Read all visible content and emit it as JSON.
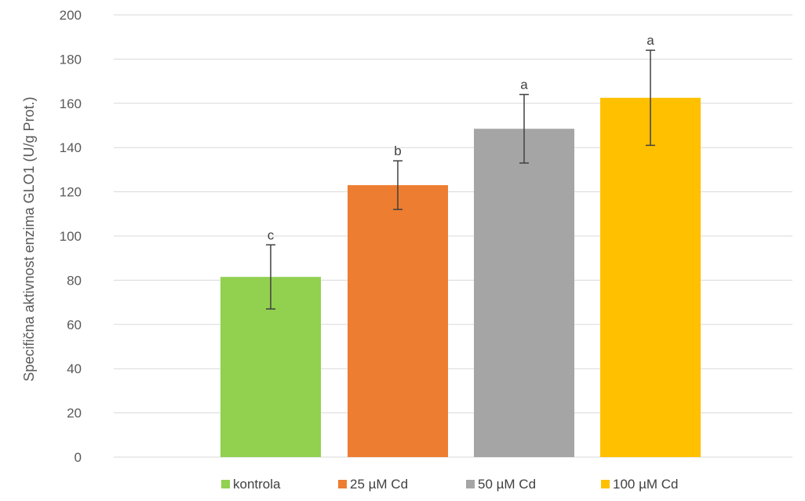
{
  "chart_data": {
    "type": "bar",
    "title": "",
    "xlabel": "",
    "ylabel": "Specifična aktivnost enzima  GLO1 (U/g Prot.)",
    "ylim": [
      0,
      200
    ],
    "yticks": [
      0,
      20,
      40,
      60,
      80,
      100,
      120,
      140,
      160,
      180,
      200
    ],
    "grid": true,
    "legend_position": "bottom",
    "series": [
      {
        "name": "kontrola",
        "value": 81.5,
        "error": 14.5,
        "label": "c",
        "color": "#92D050"
      },
      {
        "name": "25 µM Cd",
        "value": 123,
        "error": 11,
        "label": "b",
        "color": "#ED7D31"
      },
      {
        "name": "50 µM Cd",
        "value": 148.5,
        "error": 15.5,
        "label": "a",
        "color": "#A5A5A5"
      },
      {
        "name": "100 µM Cd",
        "value": 162.5,
        "error": 21.5,
        "label": "a",
        "color": "#FFC000"
      }
    ]
  }
}
